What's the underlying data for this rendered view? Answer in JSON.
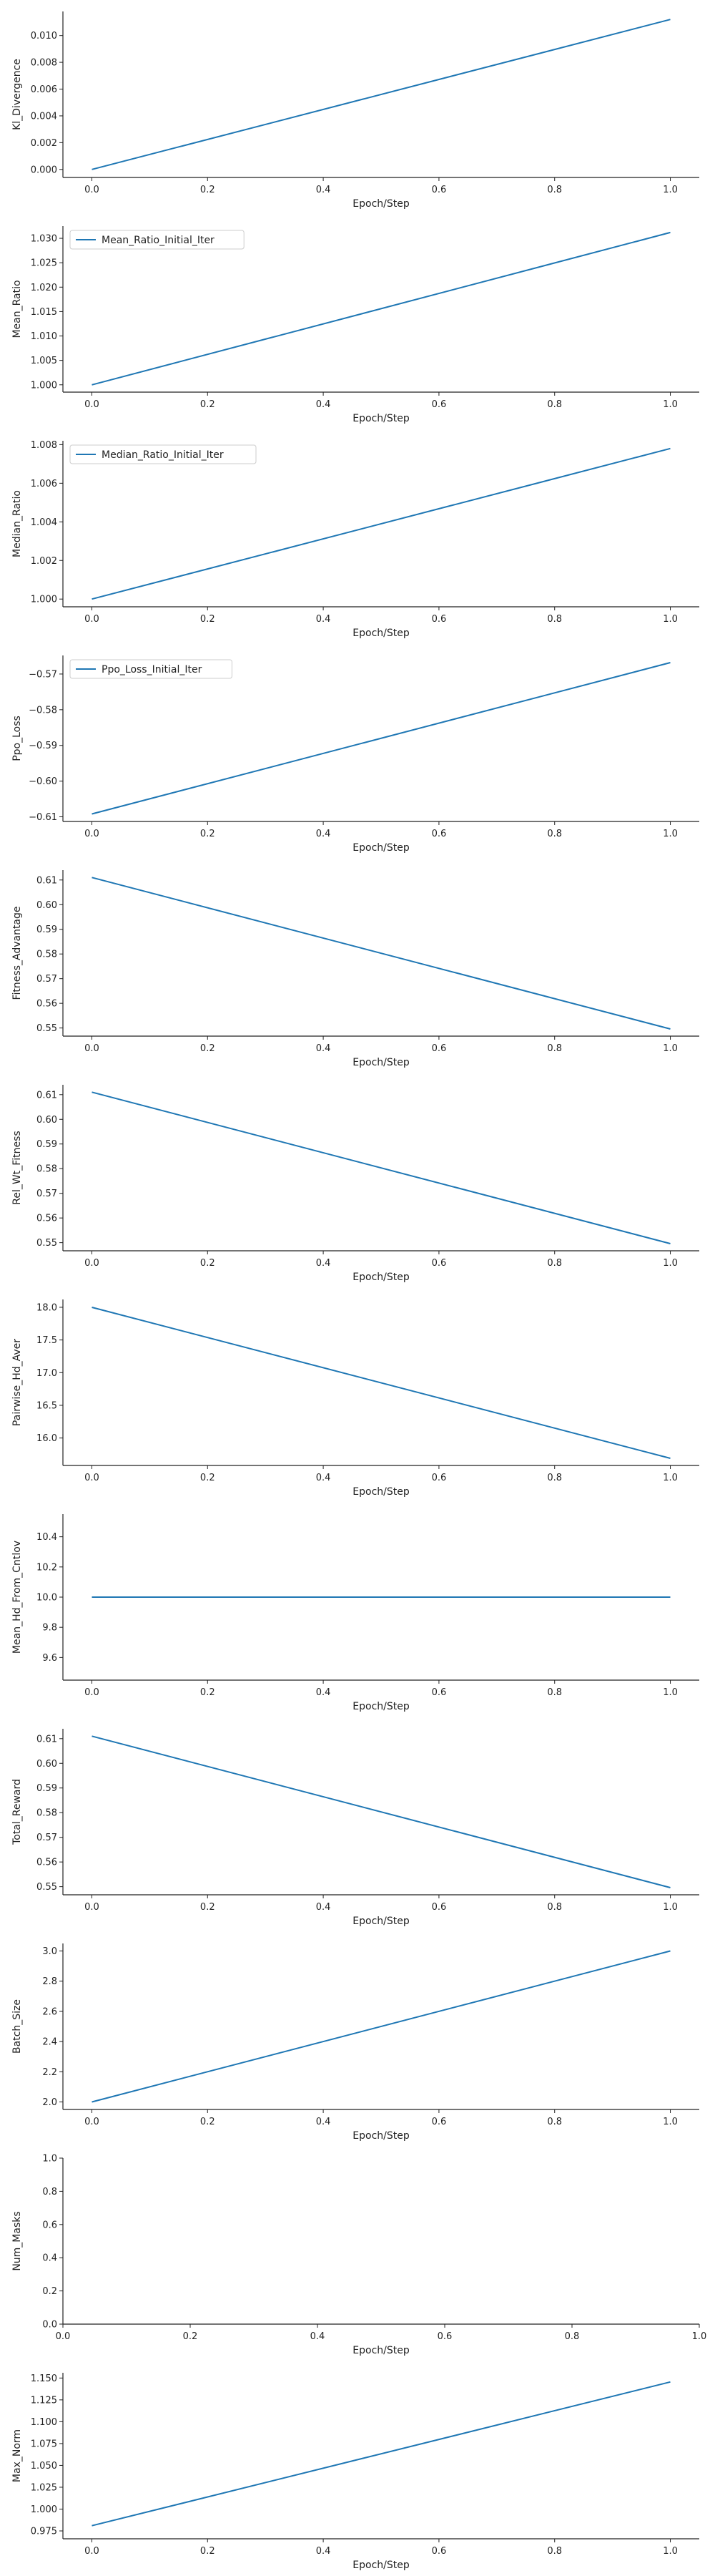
{
  "chart_data": [
    {
      "type": "line",
      "xlabel": "Epoch/Step",
      "ylabel": "Kl_Divergence",
      "ylim": [
        -0.0006,
        0.0118
      ],
      "xlim": [
        -0.05,
        1.05
      ],
      "yticks": [
        "0.000",
        "0.002",
        "0.004",
        "0.006",
        "0.008",
        "0.010"
      ],
      "ytick_values": [
        0,
        0.002,
        0.004,
        0.006,
        0.008,
        0.01
      ],
      "xticks": [
        "0.0",
        "0.2",
        "0.4",
        "0.6",
        "0.8",
        "1.0"
      ],
      "xtick_values": [
        0,
        0.2,
        0.4,
        0.6,
        0.8,
        1.0
      ],
      "legend": null,
      "series": [
        {
          "x": [
            0,
            1
          ],
          "values": [
            0.0,
            0.0112
          ]
        }
      ]
    },
    {
      "type": "line",
      "xlabel": "Epoch/Step",
      "ylabel": "Mean_Ratio",
      "ylim": [
        0.9985,
        1.0325
      ],
      "xlim": [
        -0.05,
        1.05
      ],
      "yticks": [
        "1.000",
        "1.005",
        "1.010",
        "1.015",
        "1.020",
        "1.025",
        "1.030"
      ],
      "ytick_values": [
        1.0,
        1.005,
        1.01,
        1.015,
        1.02,
        1.025,
        1.03
      ],
      "xticks": [
        "0.0",
        "0.2",
        "0.4",
        "0.6",
        "0.8",
        "1.0"
      ],
      "xtick_values": [
        0,
        0.2,
        0.4,
        0.6,
        0.8,
        1.0
      ],
      "legend": {
        "labels": [
          "Mean_Ratio_Initial_Iter"
        ],
        "loc": "upper-left"
      },
      "series": [
        {
          "name": "Mean_Ratio_Initial_Iter",
          "x": [
            0,
            1
          ],
          "values": [
            1.0,
            1.0312
          ]
        }
      ]
    },
    {
      "type": "line",
      "xlabel": "Epoch/Step",
      "ylabel": "Median_Ratio",
      "ylim": [
        0.9996,
        1.0082
      ],
      "xlim": [
        -0.05,
        1.05
      ],
      "yticks": [
        "1.000",
        "1.002",
        "1.004",
        "1.006",
        "1.008"
      ],
      "ytick_values": [
        1.0,
        1.002,
        1.004,
        1.006,
        1.008
      ],
      "xticks": [
        "0.0",
        "0.2",
        "0.4",
        "0.6",
        "0.8",
        "1.0"
      ],
      "xtick_values": [
        0,
        0.2,
        0.4,
        0.6,
        0.8,
        1.0
      ],
      "legend": {
        "labels": [
          "Median_Ratio_Initial_Iter"
        ],
        "loc": "upper-left"
      },
      "series": [
        {
          "name": "Median_Ratio_Initial_Iter",
          "x": [
            0,
            1
          ],
          "values": [
            1.0,
            1.0078
          ]
        }
      ]
    },
    {
      "type": "line",
      "xlabel": "Epoch/Step",
      "ylabel": "Ppo_Loss",
      "ylim": [
        -0.6113,
        -0.5648
      ],
      "xlim": [
        -0.05,
        1.05
      ],
      "yticks": [
        "−0.61",
        "−0.60",
        "−0.59",
        "−0.58",
        "−0.57"
      ],
      "ytick_values": [
        -0.61,
        -0.6,
        -0.59,
        -0.58,
        -0.57
      ],
      "xticks": [
        "0.0",
        "0.2",
        "0.4",
        "0.6",
        "0.8",
        "1.0"
      ],
      "xtick_values": [
        0,
        0.2,
        0.4,
        0.6,
        0.8,
        1.0
      ],
      "legend": {
        "labels": [
          "Ppo_Loss_Initial_Iter"
        ],
        "loc": "upper-left"
      },
      "series": [
        {
          "name": "Ppo_Loss_Initial_Iter",
          "x": [
            0,
            1
          ],
          "values": [
            -0.6092,
            -0.5668
          ]
        }
      ]
    },
    {
      "type": "line",
      "xlabel": "Epoch/Step",
      "ylabel": "Fitness_Advantage",
      "ylim": [
        0.5467,
        0.614
      ],
      "xlim": [
        -0.05,
        1.05
      ],
      "yticks": [
        "0.55",
        "0.56",
        "0.57",
        "0.58",
        "0.59",
        "0.60",
        "0.61"
      ],
      "ytick_values": [
        0.55,
        0.56,
        0.57,
        0.58,
        0.59,
        0.6,
        0.61
      ],
      "xticks": [
        "0.0",
        "0.2",
        "0.4",
        "0.6",
        "0.8",
        "1.0"
      ],
      "xtick_values": [
        0,
        0.2,
        0.4,
        0.6,
        0.8,
        1.0
      ],
      "legend": null,
      "series": [
        {
          "x": [
            0,
            1
          ],
          "values": [
            0.611,
            0.5496
          ]
        }
      ]
    },
    {
      "type": "line",
      "xlabel": "Epoch/Step",
      "ylabel": "Rel_Wt_Fitness",
      "ylim": [
        0.5467,
        0.614
      ],
      "xlim": [
        -0.05,
        1.05
      ],
      "yticks": [
        "0.55",
        "0.56",
        "0.57",
        "0.58",
        "0.59",
        "0.60",
        "0.61"
      ],
      "ytick_values": [
        0.55,
        0.56,
        0.57,
        0.58,
        0.59,
        0.6,
        0.61
      ],
      "xticks": [
        "0.0",
        "0.2",
        "0.4",
        "0.6",
        "0.8",
        "1.0"
      ],
      "xtick_values": [
        0,
        0.2,
        0.4,
        0.6,
        0.8,
        1.0
      ],
      "legend": null,
      "series": [
        {
          "x": [
            0,
            1
          ],
          "values": [
            0.611,
            0.5496
          ]
        }
      ]
    },
    {
      "type": "line",
      "xlabel": "Epoch/Step",
      "ylabel": "Pairwise_Hd_Aver",
      "ylim": [
        15.58,
        18.12
      ],
      "xlim": [
        -0.05,
        1.05
      ],
      "yticks": [
        "16.0",
        "16.5",
        "17.0",
        "17.5",
        "18.0"
      ],
      "ytick_values": [
        16.0,
        16.5,
        17.0,
        17.5,
        18.0
      ],
      "xticks": [
        "0.0",
        "0.2",
        "0.4",
        "0.6",
        "0.8",
        "1.0"
      ],
      "xtick_values": [
        0,
        0.2,
        0.4,
        0.6,
        0.8,
        1.0
      ],
      "legend": null,
      "series": [
        {
          "x": [
            0,
            1
          ],
          "values": [
            18.0,
            15.69
          ]
        }
      ]
    },
    {
      "type": "line",
      "xlabel": "Epoch/Step",
      "ylabel": "Mean_Hd_From_Cntlov",
      "ylim": [
        9.45,
        10.55
      ],
      "xlim": [
        -0.05,
        1.05
      ],
      "yticks": [
        "9.6",
        "9.8",
        "10.0",
        "10.2",
        "10.4"
      ],
      "ytick_values": [
        9.6,
        9.8,
        10.0,
        10.2,
        10.4
      ],
      "xticks": [
        "0.0",
        "0.2",
        "0.4",
        "0.6",
        "0.8",
        "1.0"
      ],
      "xtick_values": [
        0,
        0.2,
        0.4,
        0.6,
        0.8,
        1.0
      ],
      "legend": null,
      "series": [
        {
          "x": [
            0,
            1
          ],
          "values": [
            10.0,
            10.0
          ]
        }
      ]
    },
    {
      "type": "line",
      "xlabel": "Epoch/Step",
      "ylabel": "Total_Reward",
      "ylim": [
        0.5467,
        0.614
      ],
      "xlim": [
        -0.05,
        1.05
      ],
      "yticks": [
        "0.55",
        "0.56",
        "0.57",
        "0.58",
        "0.59",
        "0.60",
        "0.61"
      ],
      "ytick_values": [
        0.55,
        0.56,
        0.57,
        0.58,
        0.59,
        0.6,
        0.61
      ],
      "xticks": [
        "0.0",
        "0.2",
        "0.4",
        "0.6",
        "0.8",
        "1.0"
      ],
      "xtick_values": [
        0,
        0.2,
        0.4,
        0.6,
        0.8,
        1.0
      ],
      "legend": null,
      "series": [
        {
          "x": [
            0,
            1
          ],
          "values": [
            0.611,
            0.5496
          ]
        }
      ]
    },
    {
      "type": "line",
      "xlabel": "Epoch/Step",
      "ylabel": "Batch_Size",
      "ylim": [
        1.95,
        3.05
      ],
      "xlim": [
        -0.05,
        1.05
      ],
      "yticks": [
        "2.0",
        "2.2",
        "2.4",
        "2.6",
        "2.8",
        "3.0"
      ],
      "ytick_values": [
        2.0,
        2.2,
        2.4,
        2.6,
        2.8,
        3.0
      ],
      "xticks": [
        "0.0",
        "0.2",
        "0.4",
        "0.6",
        "0.8",
        "1.0"
      ],
      "xtick_values": [
        0,
        0.2,
        0.4,
        0.6,
        0.8,
        1.0
      ],
      "legend": null,
      "series": [
        {
          "x": [
            0,
            1
          ],
          "values": [
            2.0,
            3.0
          ]
        }
      ]
    },
    {
      "type": "line",
      "xlabel": "Epoch/Step",
      "ylabel": "Num_Masks",
      "ylim": [
        0,
        1
      ],
      "xlim": [
        0,
        1
      ],
      "yticks": [
        "0.0",
        "0.2",
        "0.4",
        "0.6",
        "0.8",
        "1.0"
      ],
      "ytick_values": [
        0,
        0.2,
        0.4,
        0.6,
        0.8,
        1.0
      ],
      "xticks": [
        "0.0",
        "0.2",
        "0.4",
        "0.6",
        "0.8",
        "1.0"
      ],
      "xtick_values": [
        0,
        0.2,
        0.4,
        0.6,
        0.8,
        1.0
      ],
      "legend": null,
      "series": []
    },
    {
      "type": "line",
      "xlabel": "Epoch/Step",
      "ylabel": "Max_Norm",
      "ylim": [
        0.966,
        1.156
      ],
      "xlim": [
        -0.05,
        1.05
      ],
      "yticks": [
        "0.975",
        "1.000",
        "1.025",
        "1.050",
        "1.075",
        "1.100",
        "1.125",
        "1.150"
      ],
      "ytick_values": [
        0.975,
        1.0,
        1.025,
        1.05,
        1.075,
        1.1,
        1.125,
        1.15
      ],
      "xticks": [
        "0.0",
        "0.2",
        "0.4",
        "0.6",
        "0.8",
        "1.0"
      ],
      "xtick_values": [
        0,
        0.2,
        0.4,
        0.6,
        0.8,
        1.0
      ],
      "legend": null,
      "series": [
        {
          "x": [
            0,
            1
          ],
          "values": [
            0.981,
            1.1455
          ]
        }
      ]
    }
  ],
  "style": {
    "line_color": "#1f77b4",
    "axis_color": "#222222",
    "background": "#ffffff"
  }
}
